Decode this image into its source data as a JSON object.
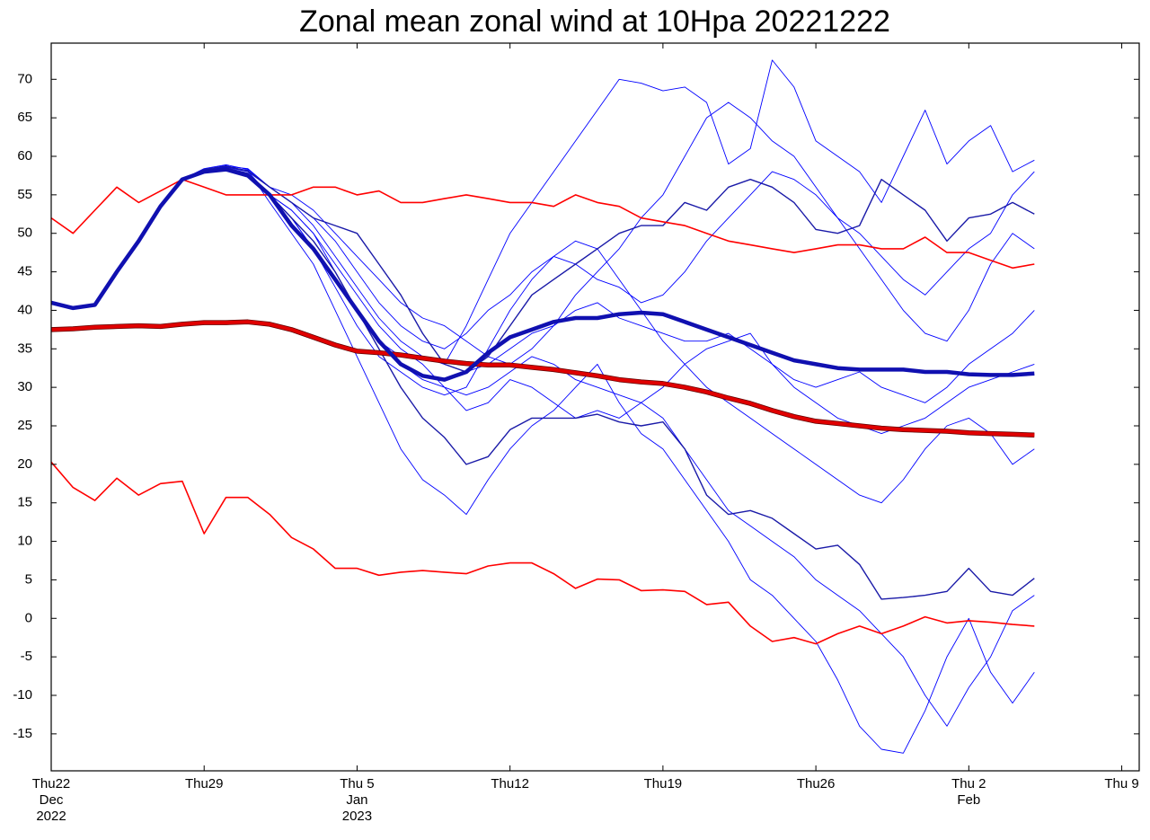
{
  "chart_data": {
    "type": "line",
    "title": "Zonal mean zonal wind at 10Hpa 20221222",
    "x": [
      0,
      1,
      2,
      3,
      4,
      5,
      6,
      7,
      8,
      9,
      10,
      11,
      12,
      13,
      14,
      15,
      16,
      17,
      18,
      19,
      20,
      21,
      22,
      23,
      24,
      25,
      26,
      27,
      28,
      29,
      30,
      31,
      32,
      33,
      34,
      35,
      36,
      37,
      38,
      39,
      40,
      41,
      42,
      43,
      44,
      45
    ],
    "xlim": [
      0,
      49.8
    ],
    "xticks": [
      {
        "value": 0,
        "label": [
          "Thu22",
          "Dec",
          "2022"
        ]
      },
      {
        "value": 7,
        "label": [
          "Thu29"
        ]
      },
      {
        "value": 14,
        "label": [
          "Thu 5",
          "Jan",
          "2023"
        ]
      },
      {
        "value": 21,
        "label": [
          "Thu12"
        ]
      },
      {
        "value": 28,
        "label": [
          "Thu19"
        ]
      },
      {
        "value": 35,
        "label": [
          "Thu26"
        ]
      },
      {
        "value": 42,
        "label": [
          "Thu 2",
          "Feb"
        ]
      },
      {
        "value": 49,
        "label": [
          "Thu 9"
        ]
      }
    ],
    "ylim": [
      -19.8,
      74.7
    ],
    "yticks": [
      -15,
      -10,
      -5,
      0,
      5,
      10,
      15,
      20,
      25,
      30,
      35,
      40,
      45,
      50,
      55,
      60,
      65,
      70
    ],
    "series": [
      {
        "color": "#0000ff",
        "line_width": 0.9,
        "values": [
          41,
          40.3,
          40.7,
          45,
          49,
          53.5,
          57,
          58.3,
          58.8,
          58,
          55,
          53,
          50,
          45,
          40,
          36,
          34,
          34,
          33,
          38,
          44,
          50,
          54,
          58,
          62,
          66,
          70,
          69.5,
          68.5,
          69,
          67,
          59,
          61,
          72.5,
          69,
          62,
          60,
          58,
          54,
          60,
          66,
          59,
          62,
          64,
          58,
          59.5
        ]
      },
      {
        "color": "#0000ff",
        "line_width": 0.9,
        "values": [
          41,
          40.3,
          40.7,
          45,
          49,
          53.5,
          57,
          58,
          58.6,
          58.2,
          54,
          50,
          46,
          40,
          34,
          28,
          22,
          18,
          16,
          13.5,
          18,
          22,
          25,
          27,
          30,
          33,
          28,
          24,
          22,
          18,
          14,
          10,
          5,
          3,
          0,
          -3,
          -8,
          -14,
          -17,
          -17.5,
          -12,
          -5,
          0,
          -7,
          -11,
          -7
        ]
      },
      {
        "color": "#0000ff",
        "line_width": 0.9,
        "values": [
          41,
          40.3,
          40.7,
          45,
          49,
          53.5,
          57,
          58.2,
          58.4,
          57.6,
          55,
          52,
          48,
          43,
          38,
          34,
          32,
          30,
          29,
          30,
          35,
          40,
          44,
          47,
          49,
          48,
          44,
          40,
          36,
          33,
          30,
          28,
          26,
          24,
          22,
          20,
          18,
          16,
          15,
          18,
          22,
          25,
          26,
          24,
          20,
          22
        ]
      },
      {
        "color": "#0000ff",
        "line_width": 0.9,
        "values": [
          41,
          40.3,
          40.7,
          45,
          49,
          53.5,
          57,
          58,
          58.7,
          58.4,
          56,
          54,
          52,
          49,
          45,
          41,
          38,
          36,
          35,
          37,
          40,
          42,
          45,
          47,
          46,
          44,
          43,
          41,
          42,
          45,
          49,
          52,
          55,
          58,
          57,
          55,
          52,
          50,
          47,
          44,
          42,
          45,
          48,
          50,
          55,
          58
        ]
      },
      {
        "color": "#0000ff",
        "line_width": 0.9,
        "values": [
          41,
          40.3,
          40.7,
          45,
          49,
          53.5,
          57,
          58.1,
          58.3,
          57.5,
          55,
          53,
          50,
          46,
          42,
          38,
          35,
          33,
          30,
          27,
          28,
          31,
          30,
          28,
          26,
          27,
          26,
          28,
          30,
          33,
          35,
          36,
          37,
          33,
          30,
          28,
          26,
          25,
          24,
          25,
          26,
          28,
          30,
          31,
          32,
          33
        ]
      },
      {
        "color": "#0000ff",
        "line_width": 0.9,
        "values": [
          41,
          40.3,
          40.7,
          45,
          49,
          53.5,
          57,
          58.4,
          58.9,
          58.3,
          56,
          55,
          53,
          50,
          47,
          44,
          41,
          39,
          38,
          36,
          34,
          33,
          35,
          38,
          42,
          45,
          48,
          52,
          55,
          60,
          65,
          67,
          65,
          62,
          60,
          56,
          52,
          48,
          44,
          40,
          37,
          36,
          40,
          46,
          50,
          48
        ]
      },
      {
        "color": "#0000ff",
        "line_width": 0.9,
        "values": [
          41,
          40.3,
          40.7,
          45,
          49,
          53.5,
          57,
          58,
          58.2,
          57.4,
          55,
          52,
          48,
          44,
          40,
          36,
          33,
          31,
          30,
          29,
          30,
          32,
          34,
          33,
          31,
          30,
          29,
          28,
          26,
          22,
          18,
          14,
          12,
          10,
          8,
          5,
          3,
          1,
          -2,
          -5,
          -10,
          -14,
          -9,
          -5,
          1,
          3
        ]
      },
      {
        "color": "#0000ff",
        "line_width": 0.9,
        "values": [
          41,
          40.3,
          40.7,
          45,
          49,
          53.5,
          57,
          58.2,
          58.6,
          58,
          56,
          54,
          51,
          47,
          43,
          39,
          36,
          34,
          33,
          32,
          33,
          35,
          37,
          38,
          40,
          41,
          39,
          38,
          37,
          36,
          36,
          37,
          35,
          33,
          31,
          30,
          31,
          32,
          30,
          29,
          28,
          30,
          33,
          35,
          37,
          40
        ]
      },
      {
        "color": "#1a1aa8",
        "line_width": 1.4,
        "values": [
          41,
          40.3,
          40.7,
          45,
          49,
          53.5,
          57,
          58,
          58.5,
          57.8,
          55,
          52,
          49,
          45,
          40,
          35,
          30,
          26,
          23.5,
          20,
          21,
          24.5,
          26,
          26,
          26,
          26.5,
          25.5,
          25,
          25.5,
          22,
          16,
          13.5,
          14,
          13,
          11,
          9,
          9.5,
          7,
          2.5,
          2.7,
          3,
          3.5,
          6.5,
          3.5,
          3,
          5.2
        ]
      },
      {
        "color": "#1a1aa8",
        "line_width": 1.4,
        "values": [
          41,
          40.3,
          40.7,
          45,
          49,
          53.5,
          57,
          58.3,
          58.7,
          58.1,
          56,
          54,
          52,
          51,
          50,
          46,
          42,
          37,
          33,
          32,
          34,
          38,
          42,
          44,
          46,
          48,
          50,
          51,
          51,
          54,
          53,
          56,
          57,
          56,
          54,
          50.5,
          50,
          51,
          57,
          55,
          53,
          49,
          52,
          52.5,
          54,
          52.5
        ]
      },
      {
        "color": "#ff0000",
        "line_width": 1.6,
        "values": [
          52,
          50,
          53,
          56,
          54,
          55.5,
          57,
          56,
          55,
          55,
          55,
          55,
          56,
          56,
          55,
          55.5,
          54,
          54,
          54.5,
          55,
          54.5,
          54,
          54,
          53.5,
          55,
          54,
          53.5,
          52,
          51.5,
          51,
          50,
          49,
          48.5,
          48,
          47.5,
          48,
          48.5,
          48.5,
          48,
          48,
          49.5,
          47.5,
          47.5,
          46.5,
          45.5,
          46
        ]
      },
      {
        "color": "#ff0000",
        "line_width": 1.6,
        "values": [
          20.3,
          17,
          15.3,
          18.2,
          16,
          17.5,
          17.8,
          11,
          15.7,
          15.7,
          13.5,
          10.5,
          9,
          6.5,
          6.5,
          5.6,
          6,
          6.2,
          6,
          5.8,
          6.8,
          7.2,
          7.2,
          5.8,
          3.9,
          5.1,
          5,
          3.6,
          3.7,
          3.5,
          1.8,
          2.1,
          -1,
          -3,
          -2.5,
          -3.3,
          -2,
          -1,
          -2,
          -1,
          0.2,
          -0.6,
          -0.3,
          -0.5,
          -0.8,
          -1
        ]
      },
      {
        "color": "#e00000",
        "line_width": 4,
        "outline": "#600000",
        "values": [
          37.5,
          37.6,
          37.8,
          37.9,
          38,
          37.9,
          38.2,
          38.4,
          38.4,
          38.5,
          38.2,
          37.5,
          36.5,
          35.5,
          34.7,
          34.5,
          34.2,
          33.8,
          33.4,
          33.1,
          32.9,
          32.9,
          32.6,
          32.3,
          31.9,
          31.5,
          31,
          30.7,
          30.5,
          30,
          29.4,
          28.6,
          27.9,
          27,
          26.2,
          25.6,
          25.3,
          25,
          24.7,
          24.5,
          24.4,
          24.3,
          24.1,
          24,
          23.9,
          23.8
        ]
      },
      {
        "color": "#1010b0",
        "line_width": 4.5,
        "values": [
          41,
          40.3,
          40.7,
          45,
          49,
          53.5,
          57,
          58,
          58.3,
          57.5,
          55,
          51,
          48,
          44,
          40,
          36,
          33,
          31.5,
          31,
          32,
          34.5,
          36.5,
          37.5,
          38.5,
          39,
          39,
          39.5,
          39.7,
          39.5,
          38.5,
          37.5,
          36.5,
          35.5,
          34.5,
          33.5,
          33,
          32.5,
          32.3,
          32.3,
          32.3,
          32,
          32,
          31.7,
          31.6,
          31.6,
          31.8
        ]
      }
    ]
  }
}
